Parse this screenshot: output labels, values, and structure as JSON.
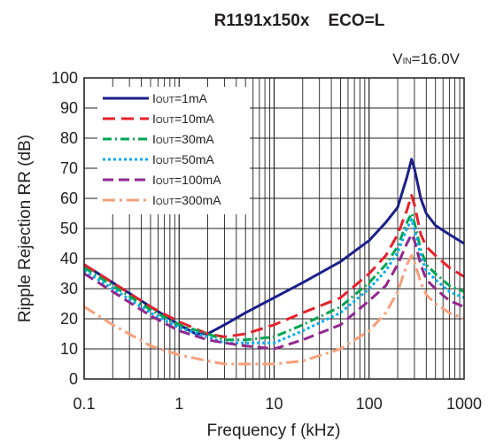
{
  "chart_data": {
    "type": "line",
    "title": "R1191x150x    ECO=L",
    "condition": {
      "main": "V",
      "sub": "IN",
      "rest": "=16.0V"
    },
    "xlabel": "Frequency f (kHz)",
    "ylabel": "Ripple Rejection RR (dB)",
    "xscale": "log",
    "xlim": [
      0.1,
      1000
    ],
    "ylim": [
      0,
      100
    ],
    "xticks": [
      0.1,
      1,
      10,
      100,
      1000
    ],
    "xtick_labels": [
      "0.1",
      "1",
      "10",
      "100",
      "1000"
    ],
    "yticks": [
      0,
      10,
      20,
      30,
      40,
      50,
      60,
      70,
      80,
      90,
      100
    ],
    "ytick_labels": [
      "0",
      "10",
      "20",
      "30",
      "40",
      "50",
      "60",
      "70",
      "80",
      "90",
      "100"
    ],
    "grid": true,
    "legend_position": "top-left",
    "series": [
      {
        "label_main": "I",
        "label_sub": "OUT",
        "label_rest": "=1mA",
        "color": "#1b1f8a",
        "dash": "",
        "x": [
          0.1,
          0.2,
          0.5,
          1,
          1.5,
          2,
          3,
          5,
          10,
          20,
          50,
          100,
          150,
          200,
          250,
          280,
          300,
          350,
          400,
          500,
          700,
          1000
        ],
        "y": [
          38,
          32,
          24,
          18,
          15,
          15,
          18,
          22,
          27,
          32,
          39,
          46,
          52,
          57,
          67,
          73,
          70,
          60,
          55,
          51,
          48,
          45
        ]
      },
      {
        "label_main": "I",
        "label_sub": "OUT",
        "label_rest": "=10mA",
        "color": "#e8202a",
        "dash": "14,7",
        "x": [
          0.1,
          0.2,
          0.5,
          1,
          2,
          3,
          5,
          10,
          20,
          50,
          100,
          150,
          200,
          250,
          280,
          300,
          350,
          400,
          500,
          700,
          1000
        ],
        "y": [
          38,
          32,
          24,
          19,
          15,
          14,
          15,
          18,
          22,
          27,
          35,
          41,
          48,
          56,
          61,
          58,
          48,
          44,
          41,
          37,
          34
        ]
      },
      {
        "label_main": "I",
        "label_sub": "OUT",
        "label_rest": "=30mA",
        "color": "#00a651",
        "dash": "10,4,2,4",
        "x": [
          0.1,
          0.2,
          0.5,
          1,
          2,
          3,
          5,
          10,
          20,
          50,
          100,
          150,
          200,
          250,
          280,
          300,
          350,
          400,
          500,
          700,
          1000
        ],
        "y": [
          37,
          31,
          23,
          18,
          15,
          13,
          13,
          14,
          18,
          24,
          32,
          38,
          44,
          52,
          55,
          52,
          43,
          38,
          35,
          31,
          29
        ]
      },
      {
        "label_main": "I",
        "label_sub": "OUT",
        "label_rest": "=50mA",
        "color": "#00aeef",
        "dash": "3,3",
        "x": [
          0.1,
          0.2,
          0.5,
          1,
          2,
          3,
          5,
          10,
          20,
          50,
          100,
          150,
          200,
          250,
          280,
          300,
          350,
          400,
          500,
          700,
          1000
        ],
        "y": [
          36,
          30,
          22,
          17,
          14,
          12,
          12,
          12,
          16,
          22,
          30,
          36,
          42,
          50,
          53,
          50,
          41,
          36,
          33,
          29,
          27
        ]
      },
      {
        "label_main": "I",
        "label_sub": "OUT",
        "label_rest": "=100mA",
        "color": "#92278f",
        "dash": "12,6",
        "x": [
          0.1,
          0.2,
          0.5,
          1,
          2,
          3,
          5,
          10,
          20,
          50,
          100,
          150,
          200,
          250,
          280,
          300,
          350,
          400,
          500,
          700,
          1000
        ],
        "y": [
          35,
          29,
          21,
          16,
          13,
          12,
          11,
          10,
          13,
          18,
          26,
          31,
          38,
          45,
          48,
          46,
          38,
          33,
          30,
          26,
          24
        ]
      },
      {
        "label_main": "I",
        "label_sub": "OUT",
        "label_rest": "=300mA",
        "color": "#f7a07a",
        "dash": "14,5,3,5",
        "x": [
          0.1,
          0.2,
          0.5,
          1,
          2,
          3,
          5,
          10,
          20,
          50,
          100,
          150,
          200,
          250,
          280,
          300,
          350,
          400,
          500,
          700,
          1000
        ],
        "y": [
          24,
          18,
          11,
          8,
          6,
          5,
          5,
          5,
          6,
          10,
          16,
          22,
          29,
          38,
          41,
          39,
          32,
          28,
          25,
          22,
          20
        ]
      }
    ]
  }
}
